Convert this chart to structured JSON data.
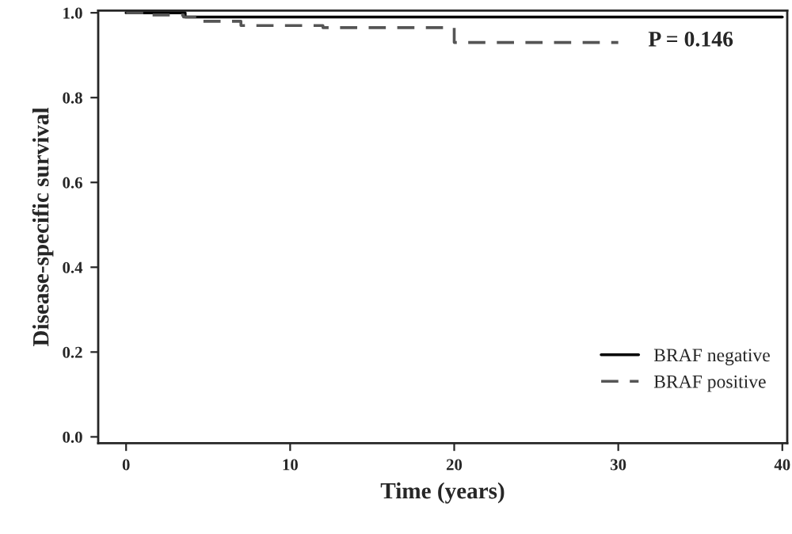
{
  "chart_data": {
    "type": "step",
    "xlabel": "Time (years)",
    "ylabel": "Disease-specific survival",
    "series": [
      {
        "name": "BRAF negative",
        "color": "#000000",
        "line_style": "solid",
        "x": [
          0,
          3.6,
          40
        ],
        "values": [
          1.0,
          0.99,
          0.99
        ]
      },
      {
        "name": "BRAF positive",
        "color": "#555555",
        "line_style": "dashed",
        "x": [
          0,
          1.5,
          3.5,
          4.5,
          7,
          12,
          20,
          30
        ],
        "values": [
          1.0,
          0.995,
          0.99,
          0.98,
          0.97,
          0.965,
          0.93,
          0.93
        ]
      }
    ],
    "annotations": [
      "P = 0.146"
    ],
    "xlim": [
      -1.7,
      40.3
    ],
    "ylim": [
      -0.015,
      1.005
    ],
    "xticks": [
      0,
      10,
      20,
      30,
      40
    ],
    "yticks": [
      {
        "value": 0,
        "label": "0.0"
      },
      {
        "value": 0.2,
        "label": "0.2"
      },
      {
        "value": 0.4,
        "label": "0.4"
      },
      {
        "value": 0.6,
        "label": "0.6"
      },
      {
        "value": 0.8,
        "label": "0.8"
      },
      {
        "value": 1,
        "label": "1.0"
      }
    ],
    "grid": false,
    "legend": "bottom right"
  }
}
